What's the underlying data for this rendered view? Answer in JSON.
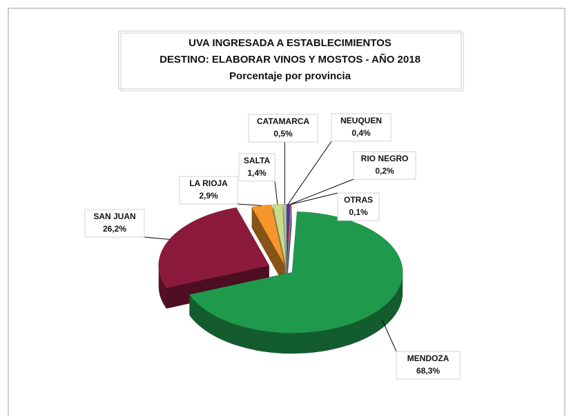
{
  "chart_data": {
    "type": "pie",
    "title": "UVA INGRESADA A ESTABLECIMIENTOS",
    "subtitle": "DESTINO: ELABORAR VINOS Y MOSTOS - AÑO 2018",
    "subtitle2": "Porcentaje por provincia",
    "categories": [
      "NEUQUEN",
      "RIO NEGRO",
      "OTRAS",
      "MENDOZA",
      "SAN JUAN",
      "LA RIOJA",
      "SALTA",
      "CATAMARCA"
    ],
    "values": [
      0.4,
      0.2,
      0.1,
      68.3,
      26.2,
      2.9,
      1.4,
      0.5
    ],
    "value_labels": [
      "0,4%",
      "0,2%",
      "0,1%",
      "68,3%",
      "26,2%",
      "2,9%",
      "1,4%",
      "0,5%"
    ],
    "colors": [
      "#3b3fb8",
      "#e0201f",
      "#8fb8e0",
      "#1f9a4c",
      "#8c1a3c",
      "#f7962a",
      "#c9dc8c",
      "#b8c0a0"
    ]
  }
}
